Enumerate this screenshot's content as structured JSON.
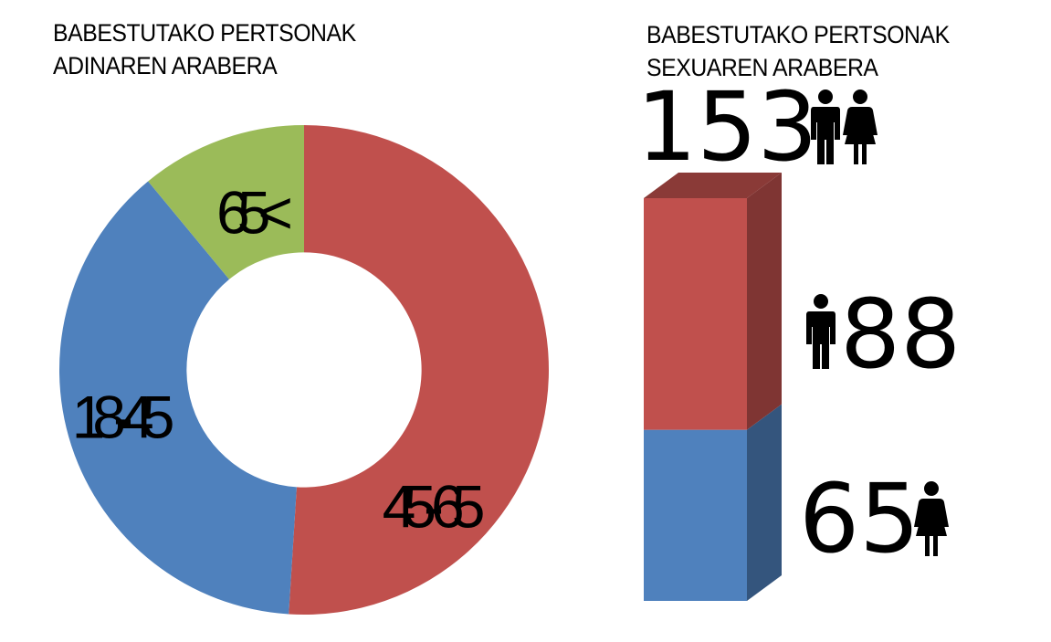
{
  "titles": {
    "donut_line1": "BABESTUTAKO PERTSONAK",
    "donut_line2": "ADINAREN ARABERA",
    "bar_line1": "BABESTUTAKO PERTSONAK",
    "bar_line2": "SEXUAREN ARABERA"
  },
  "chart_data": [
    {
      "type": "pie",
      "title": "BABESTUTAKO PERTSONAK ADINAREN ARABERA",
      "categories": [
        "45-65",
        "18-45",
        "65<"
      ],
      "values": [
        51,
        38,
        11
      ],
      "colors": [
        "#c0504d",
        "#4f81bd",
        "#9bbb59"
      ],
      "labels": [
        "45-65",
        "18-45",
        "65<"
      ],
      "hole": 0.48
    },
    {
      "type": "bar",
      "title": "BABESTUTAKO PERTSONAK SEXUAREN ARABERA",
      "stacked": true,
      "total": "153",
      "series": [
        {
          "name": "gizonak",
          "value": 88,
          "label": "88",
          "color": "#c0504d",
          "icon": "man-icon"
        },
        {
          "name": "emakumeak",
          "value": 65,
          "label": "65",
          "color": "#4f81bd",
          "icon": "woman-icon"
        }
      ],
      "total_icons": [
        "man-icon",
        "woman-icon"
      ]
    }
  ]
}
